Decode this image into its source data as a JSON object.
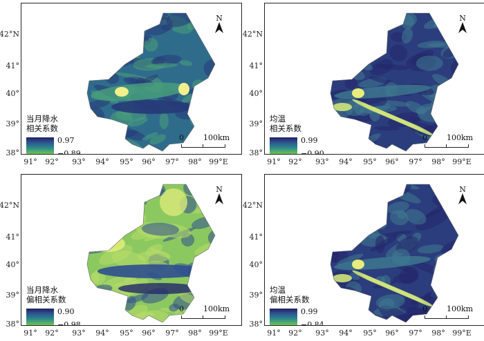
{
  "map": {
    "lat_ticks": [
      "42°N",
      "41°",
      "40°",
      "39°",
      "38°"
    ],
    "lon_ticks": [
      "91°",
      "92°",
      "93°",
      "94°",
      "95°",
      "96°",
      "97°",
      "98°",
      "99°E"
    ],
    "north_label": "N",
    "scale": {
      "zero": "0",
      "end": "100km"
    }
  },
  "panels": [
    {
      "legend_line1": "当月降水",
      "legend_line2": "相关系数",
      "max": "0.97",
      "min": "−0.89",
      "tone": "mixed"
    },
    {
      "legend_line1": "均温",
      "legend_line2": "相关系数",
      "max": "0.99",
      "min": "−0.90",
      "tone": "dark"
    },
    {
      "legend_line1": "当月降水",
      "legend_line2": "偏相关系数",
      "max": "0.90",
      "min": "−0.98",
      "tone": "light"
    },
    {
      "legend_line1": "均温",
      "legend_line2": "偏相关系数",
      "max": "0.99",
      "min": "−0.84",
      "tone": "dark"
    }
  ],
  "colors": {
    "high": "#202160",
    "mid": "#2a8a8c",
    "low": "#f4f05a"
  }
}
